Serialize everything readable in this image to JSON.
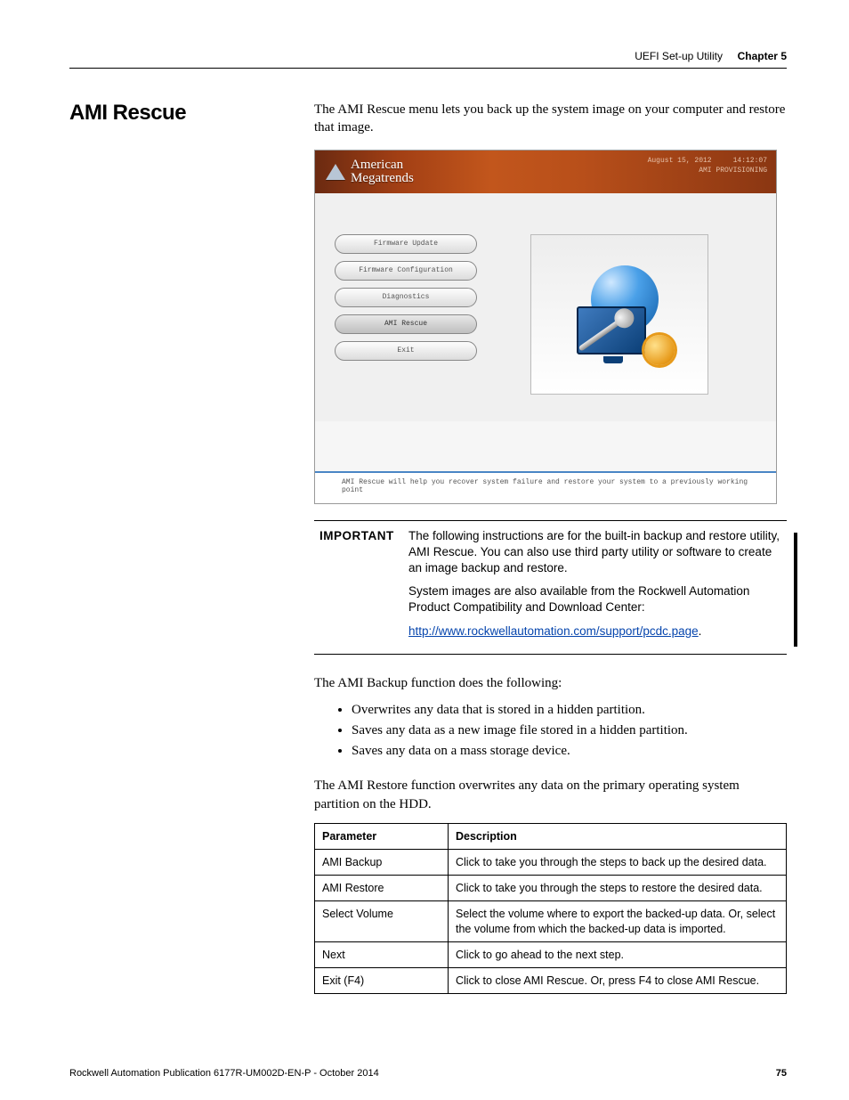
{
  "header": {
    "left": "UEFI Set-up Utility",
    "chapter": "Chapter 5"
  },
  "title": "AMI Rescue",
  "intro": "The AMI Rescue menu lets you back up the system image on your computer and restore that image.",
  "uefi": {
    "brand_line1": "American",
    "brand_line2": "Megatrends",
    "date": "August 15, 2012",
    "time": "14:12:07",
    "mode": "AMI PROVISIONING",
    "menu": [
      "Firmware Update",
      "Firmware Configuration",
      "Diagnostics",
      "AMI Rescue",
      "Exit"
    ],
    "selected_index": 3,
    "status": "AMI Rescue will help you recover system failure and restore your system to a previously working point"
  },
  "important": {
    "label": "IMPORTANT",
    "p1": "The following instructions are for the built-in backup and restore utility, AMI Rescue. You can also use third party utility or software to create an image backup and restore.",
    "p2": "System images are also available from the Rockwell Automation Product Compatibility and Download Center:",
    "link_text": "http://www.rockwellautomation.com/support/pcdc.page",
    "link_suffix": "."
  },
  "backup_intro": "The AMI Backup function does the following:",
  "backup_bullets": [
    "Overwrites any data that is stored in a hidden partition.",
    "Saves any data as a new image file stored in a hidden partition.",
    "Saves any data on a mass storage device."
  ],
  "restore_text": "The AMI Restore function overwrites any data on the primary operating system partition on the HDD.",
  "param_table": {
    "headers": [
      "Parameter",
      "Description"
    ],
    "rows": [
      [
        "AMI Backup",
        "Click to take you through the steps to back up the desired data."
      ],
      [
        "AMI Restore",
        "Click to take you through the steps to restore the desired data."
      ],
      [
        "Select Volume",
        "Select the volume where to export the backed-up data. Or, select the volume from which the backed-up data is imported."
      ],
      [
        "Next",
        "Click to go ahead to the next step."
      ],
      [
        "Exit (F4)",
        "Click to close AMI Rescue. Or, press F4 to close AMI Rescue."
      ]
    ]
  },
  "footer": {
    "pub": "Rockwell Automation Publication 6177R-UM002D-EN-P - October 2014",
    "page": "75"
  },
  "colors": {
    "link": "#0645ad",
    "header_gradient_start": "#6b2a11",
    "header_gradient_end": "#8a3612"
  }
}
